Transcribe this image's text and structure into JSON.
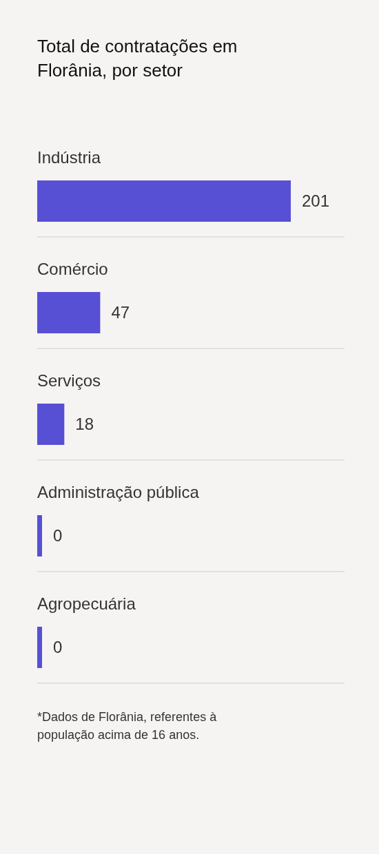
{
  "chart_data": {
    "type": "bar",
    "orientation": "horizontal",
    "title": "Total de contratações em Florânia, por setor",
    "categories": [
      "Indústria",
      "Comércio",
      "Serviços",
      "Administração pública",
      "Agropecuária"
    ],
    "values": [
      201,
      47,
      18,
      0,
      0
    ],
    "color": "#5750d4",
    "data_labels": true,
    "grid": true,
    "annotations": [
      "*Dados de Florânia, referentes à população acima de 16 anos."
    ]
  }
}
